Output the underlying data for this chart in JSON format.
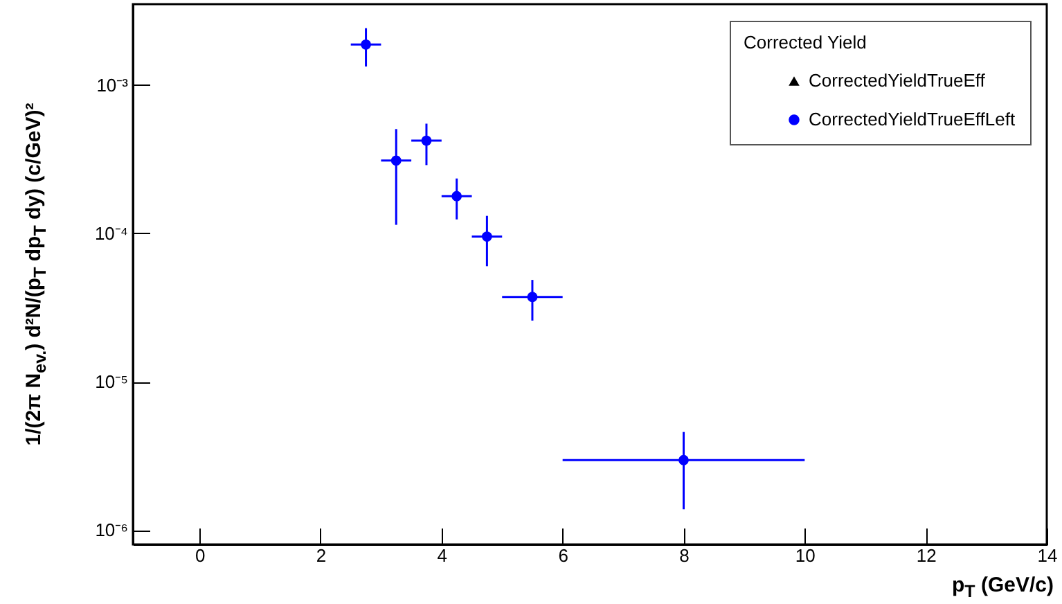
{
  "chart_data": {
    "type": "scatter",
    "xlabel": "p$_{T}$ (GeV/c)",
    "ylabel": "1/(2π N$_{ev.}$) d²N/(p$_{T}$ dp$_{T}$ dy) (c/GeV)²",
    "legend_title": "Corrected Yield",
    "legend": "top right",
    "log": true,
    "grid": false,
    "x": [
      2.75,
      3.25,
      3.75,
      4.25,
      4.75,
      5.5,
      8
    ],
    "series": [
      {
        "name": "CorrectedYieldTrueEff",
        "color": "#000000",
        "marker": "triangle",
        "values": [
          null,
          null,
          null,
          null,
          null,
          null,
          null
        ]
      },
      {
        "name": "CorrectedYieldTrueEffLeft",
        "color": "#0000ff",
        "marker": "circle",
        "values": [
          0.00187,
          0.000309,
          0.000421,
          0.000178,
          9.5e-05,
          3.72e-05,
          2.96e-06
        ],
        "errors": [
          [
            0.00133,
            0.00241
          ],
          [
            0.000114,
            0.000504
          ],
          [
            0.000288,
            0.000548
          ],
          [
            0.000124,
            0.000234
          ],
          [
            6e-05,
            0.000131
          ],
          [
            2.58e-05,
            4.85e-05
          ],
          [
            1.38e-06,
            4.58e-06
          ]
        ],
        "xerrors": [
          [
            2.5,
            3.0
          ],
          [
            3.0,
            3.5
          ],
          [
            3.5,
            4.0
          ],
          [
            4.0,
            4.5
          ],
          [
            4.5,
            5.0
          ],
          [
            5.0,
            6.0
          ],
          [
            6.0,
            10.0
          ]
        ]
      }
    ],
    "xlim": [
      -1.1,
      14
    ],
    "xticks": [
      0,
      2,
      4,
      6,
      8,
      10,
      12,
      14
    ],
    "ylim": [
      8e-07,
      0.0035
    ],
    "yticks": [
      {
        "value": 1e-06,
        "label": "10⁻⁶"
      },
      {
        "value": 1e-05,
        "label": "10⁻⁵"
      },
      {
        "value": 0.0001,
        "label": "10⁻⁴"
      },
      {
        "value": 0.001,
        "label": "10⁻³"
      }
    ]
  }
}
